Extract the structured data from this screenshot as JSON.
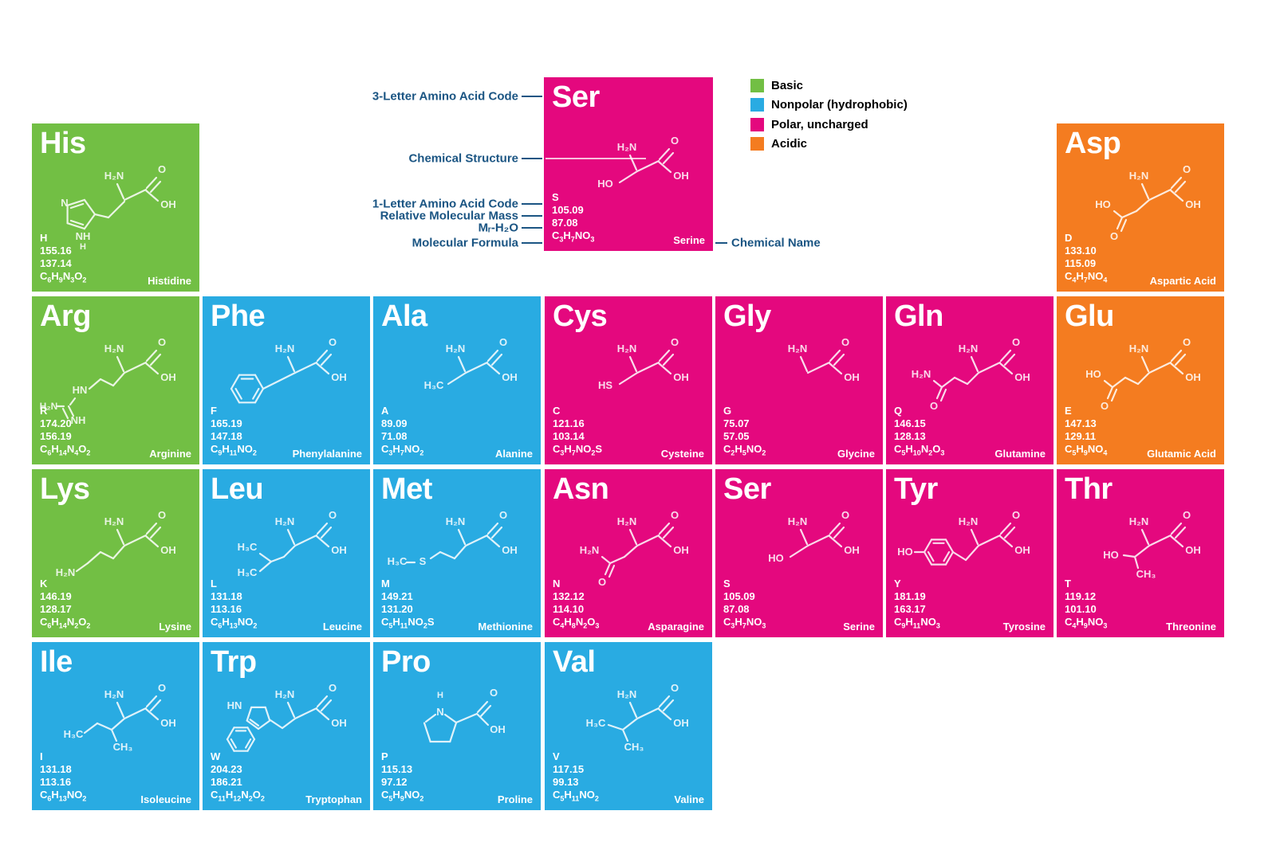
{
  "palette": {
    "basic": "#72BF44",
    "nonpolar": "#29ABE2",
    "polar": "#E4087E",
    "acidic": "#F47C20",
    "annotation": "#1B5583",
    "card_text": "#FFFFFF"
  },
  "legend": {
    "items": [
      {
        "label": "Basic",
        "category": "basic"
      },
      {
        "label": "Nonpolar (hydrophobic)",
        "category": "nonpolar"
      },
      {
        "label": "Polar, uncharged",
        "category": "polar"
      },
      {
        "label": "Acidic",
        "category": "acidic"
      }
    ]
  },
  "annotations": {
    "three_letter": "3-Letter Amino Acid Code",
    "structure": "Chemical Structure",
    "one_letter": "1-Letter Amino Acid Code",
    "molecular_mass": "Relative Molecular Mass",
    "mass_minus_water": "Mᵣ-H₂O",
    "formula": "Molecular Formula",
    "chemical_name": "Chemical Name"
  },
  "structure_text": {
    "amine": "H₂N",
    "h2n": "H₂N",
    "o": "O",
    "oh": "OH",
    "ho": "HO",
    "hs": "HS",
    "h3c": "H₃C",
    "ch3": "CH₃",
    "s": "S",
    "hn": "HN",
    "nh": "NH",
    "n": "N",
    "h": "H"
  },
  "example": {
    "code": "Ser",
    "letter": "S",
    "mass": "105.09",
    "mass_h2o": "87.08",
    "formula": "C3H7NO3",
    "name": "Serine",
    "category": "polar",
    "motif": "hydroxymethyl"
  },
  "amino_acids": [
    {
      "code": "His",
      "letter": "H",
      "mass": "155.16",
      "mass_h2o": "137.14",
      "formula": "C6H9N3O2",
      "name": "Histidine",
      "category": "basic",
      "motif": "imidazole",
      "row": 0,
      "col": 0
    },
    {
      "code": "Asp",
      "letter": "D",
      "mass": "133.10",
      "mass_h2o": "115.09",
      "formula": "C4H7NO4",
      "name": "Aspartic Acid",
      "category": "acidic",
      "motif": "carboxyl-short",
      "row": 0,
      "col": 6
    },
    {
      "code": "Arg",
      "letter": "R",
      "mass": "174.20",
      "mass_h2o": "156.19",
      "formula": "C6H14N4O2",
      "name": "Arginine",
      "category": "basic",
      "motif": "guanidino",
      "row": 1,
      "col": 0
    },
    {
      "code": "Phe",
      "letter": "F",
      "mass": "165.19",
      "mass_h2o": "147.18",
      "formula": "C9H11NO2",
      "name": "Phenylalanine",
      "category": "nonpolar",
      "motif": "benzyl",
      "row": 1,
      "col": 1
    },
    {
      "code": "Ala",
      "letter": "A",
      "mass": "89.09",
      "mass_h2o": "71.08",
      "formula": "C3H7NO2",
      "name": "Alanine",
      "category": "nonpolar",
      "motif": "methyl",
      "row": 1,
      "col": 2
    },
    {
      "code": "Cys",
      "letter": "C",
      "mass": "121.16",
      "mass_h2o": "103.14",
      "formula": "C3H7NO2S",
      "name": "Cysteine",
      "category": "polar",
      "motif": "thiol",
      "row": 1,
      "col": 3
    },
    {
      "code": "Gly",
      "letter": "G",
      "mass": "75.07",
      "mass_h2o": "57.05",
      "formula": "C2H5NO2",
      "name": "Glycine",
      "category": "polar",
      "motif": "none",
      "row": 1,
      "col": 4
    },
    {
      "code": "Gln",
      "letter": "Q",
      "mass": "146.15",
      "mass_h2o": "128.13",
      "formula": "C5H10N2O3",
      "name": "Glutamine",
      "category": "polar",
      "motif": "amide-long",
      "row": 1,
      "col": 5
    },
    {
      "code": "Glu",
      "letter": "E",
      "mass": "147.13",
      "mass_h2o": "129.11",
      "formula": "C5H9NO4",
      "name": "Glutamic Acid",
      "category": "acidic",
      "motif": "carboxyl-long",
      "row": 1,
      "col": 6
    },
    {
      "code": "Lys",
      "letter": "K",
      "mass": "146.19",
      "mass_h2o": "128.17",
      "formula": "C6H14N2O2",
      "name": "Lysine",
      "category": "basic",
      "motif": "amino-chain",
      "row": 2,
      "col": 0
    },
    {
      "code": "Leu",
      "letter": "L",
      "mass": "131.18",
      "mass_h2o": "113.16",
      "formula": "C6H13NO2",
      "name": "Leucine",
      "category": "nonpolar",
      "motif": "isobutyl",
      "row": 2,
      "col": 1
    },
    {
      "code": "Met",
      "letter": "M",
      "mass": "149.21",
      "mass_h2o": "131.20",
      "formula": "C5H11NO2S",
      "name": "Methionine",
      "category": "nonpolar",
      "motif": "thioether",
      "row": 2,
      "col": 2
    },
    {
      "code": "Asn",
      "letter": "N",
      "mass": "132.12",
      "mass_h2o": "114.10",
      "formula": "C4H8N2O3",
      "name": "Asparagine",
      "category": "polar",
      "motif": "amide-short",
      "row": 2,
      "col": 3
    },
    {
      "code": "Ser",
      "letter": "S",
      "mass": "105.09",
      "mass_h2o": "87.08",
      "formula": "C3H7NO3",
      "name": "Serine",
      "category": "polar",
      "motif": "hydroxymethyl",
      "row": 2,
      "col": 4
    },
    {
      "code": "Tyr",
      "letter": "Y",
      "mass": "181.19",
      "mass_h2o": "163.17",
      "formula": "C9H11NO3",
      "name": "Tyrosine",
      "category": "polar",
      "motif": "phenol",
      "row": 2,
      "col": 5
    },
    {
      "code": "Thr",
      "letter": "T",
      "mass": "119.12",
      "mass_h2o": "101.10",
      "formula": "C4H9NO3",
      "name": "Threonine",
      "category": "polar",
      "motif": "hydroxyl-methyl",
      "row": 2,
      "col": 6
    },
    {
      "code": "Ile",
      "letter": "I",
      "mass": "131.18",
      "mass_h2o": "113.16",
      "formula": "C6H13NO2",
      "name": "Isoleucine",
      "category": "nonpolar",
      "motif": "sec-butyl",
      "row": 3,
      "col": 0
    },
    {
      "code": "Trp",
      "letter": "W",
      "mass": "204.23",
      "mass_h2o": "186.21",
      "formula": "C11H12N2O2",
      "name": "Tryptophan",
      "category": "nonpolar",
      "motif": "indole",
      "row": 3,
      "col": 1
    },
    {
      "code": "Pro",
      "letter": "P",
      "mass": "115.13",
      "mass_h2o": "97.12",
      "formula": "C5H9NO2",
      "name": "Proline",
      "category": "nonpolar",
      "motif": "pyrrolidine",
      "row": 3,
      "col": 2
    },
    {
      "code": "Val",
      "letter": "V",
      "mass": "117.15",
      "mass_h2o": "99.13",
      "formula": "C5H11NO2",
      "name": "Valine",
      "category": "nonpolar",
      "motif": "isopropyl",
      "row": 3,
      "col": 3
    }
  ]
}
